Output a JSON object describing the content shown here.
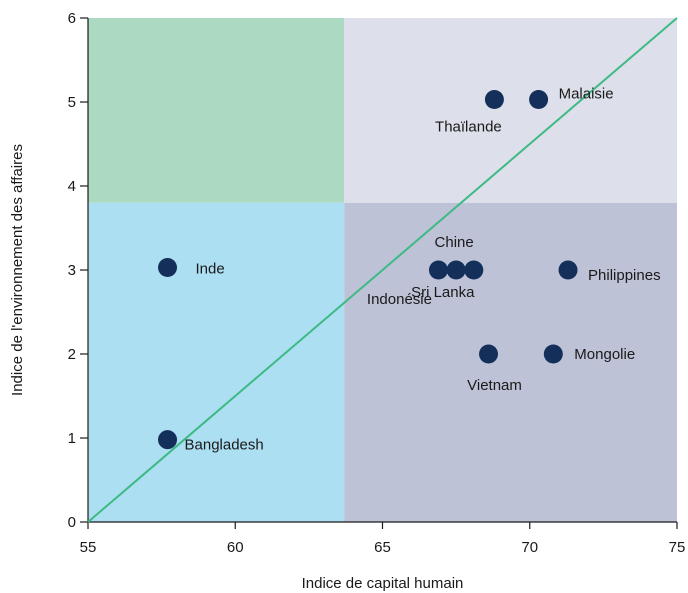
{
  "chart_data": {
    "type": "scatter",
    "title": "",
    "xlabel": "Indice de capital humain",
    "ylabel": "Indice de l'environnement des affaires",
    "xlim": [
      55,
      75
    ],
    "ylim": [
      0,
      6
    ],
    "xticks": [
      "55",
      "60",
      "65",
      "70",
      "75"
    ],
    "yticks": [
      "0",
      "1",
      "2",
      "3",
      "4",
      "5",
      "6"
    ],
    "grid": false,
    "quadrants": {
      "x_split": 63.7,
      "y_split": 3.8,
      "colors": {
        "top_left": "#acd9c1",
        "top_right": "#dde0ea",
        "bottom_left": "#addff2",
        "bottom_right": "#bec2d6"
      }
    },
    "diagonal_line": {
      "from": [
        55,
        0
      ],
      "to": [
        75,
        6
      ],
      "color": "#3dba84"
    },
    "point_color": "#14305a",
    "points": [
      {
        "label": "Malaisie",
        "x": 70.3,
        "y": 5.03
      },
      {
        "label": "Thaïlande",
        "x": 68.8,
        "y": 5.03
      },
      {
        "label": "Chine",
        "x": 67.5,
        "y": 3.0
      },
      {
        "label": "Indonésie",
        "x": 66.9,
        "y": 3.0
      },
      {
        "label": "Sri Lanka",
        "x": 68.1,
        "y": 3.0
      },
      {
        "label": "Philippines",
        "x": 71.3,
        "y": 3.0
      },
      {
        "label": "Inde",
        "x": 57.7,
        "y": 3.03
      },
      {
        "label": "Vietnam",
        "x": 68.6,
        "y": 2.0
      },
      {
        "label": "Mongolie",
        "x": 70.8,
        "y": 2.0
      },
      {
        "label": "Bangladesh",
        "x": 57.7,
        "y": 0.98
      }
    ]
  }
}
